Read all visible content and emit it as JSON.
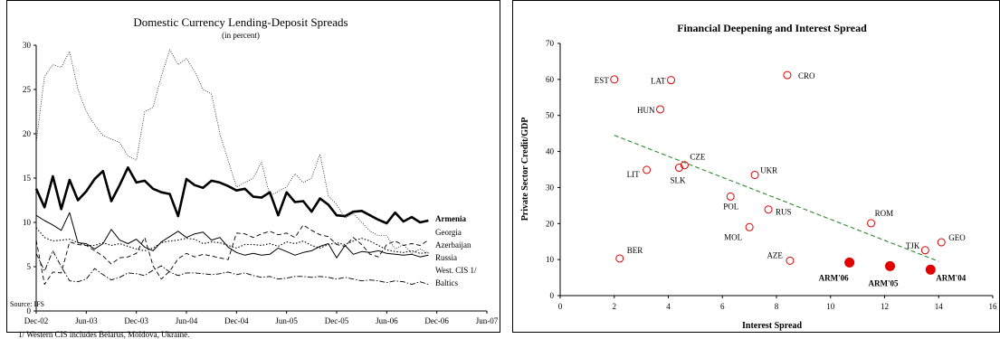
{
  "chart_data": [
    {
      "type": "line",
      "title": "Domestic Currency Lending-Deposit Spreads",
      "subtitle": "(in percent)",
      "source": "Source: IFS",
      "footnote": "1/ Western CIS includes Belarus, Moldova, Ukraine.",
      "ylim": [
        0,
        30
      ],
      "yticks": [
        0,
        5,
        10,
        15,
        20,
        25,
        30
      ],
      "xtick_labels": [
        "Dec-02",
        "Jun-03",
        "Dec-03",
        "Jun-04",
        "Dec-04",
        "Jun-05",
        "Dec-05",
        "Jun-06",
        "Dec-06",
        "Jun-07"
      ],
      "x_start": "Dec-02",
      "grid": false,
      "series": [
        {
          "name": "Armenia",
          "color": "#000000",
          "style": "bold-solid",
          "values": [
            13.8,
            11.7,
            15.2,
            11.5,
            14.8,
            12.5,
            13.5,
            14.9,
            15.8,
            12.4,
            14.2,
            16.2,
            14.5,
            14.7,
            13.8,
            13.4,
            13.2,
            10.7,
            14.9,
            14.2,
            13.9,
            14.7,
            14.5,
            14.1,
            13.6,
            13.8,
            12.9,
            12.8,
            13.4,
            10.8,
            13.4,
            12.3,
            12.4,
            11.2,
            12.7,
            12.0,
            10.8,
            10.7,
            11.2,
            11.3,
            10.8,
            10.3,
            9.9,
            11.1,
            10.1,
            10.6,
            10.0,
            10.2
          ]
        },
        {
          "name": "Georgia",
          "color": "#000000",
          "style": "dotted",
          "values": [
            9.4,
            8.3,
            7.9,
            8.0,
            8.1,
            7.7,
            7.4,
            7.4,
            7.7,
            7.4,
            7.6,
            7.3,
            7.0,
            6.8,
            7.1,
            7.7,
            7.9,
            8.0,
            8.2,
            8.1,
            7.6,
            7.8,
            7.7,
            7.4,
            7.1,
            7.5,
            7.5,
            7.4,
            7.6,
            7.3,
            7.8,
            7.6,
            7.9,
            7.4,
            7.1,
            7.5,
            7.7,
            7.5,
            7.9,
            8.2,
            7.9,
            7.4,
            6.9,
            6.7,
            6.6,
            6.8,
            6.5,
            6.6
          ]
        },
        {
          "name": "Azerbaijan",
          "color": "#000000",
          "style": "dashed",
          "values": [
            8.0,
            3.0,
            4.4,
            4.3,
            7.8,
            7.5,
            7.4,
            6.8,
            6.2,
            5.3,
            6.0,
            6.1,
            6.5,
            8.3,
            5.1,
            3.6,
            4.5,
            5.9,
            6.5,
            6.1,
            6.4,
            6.2,
            6.0,
            5.8,
            8.8,
            8.7,
            8.3,
            8.7,
            9.0,
            8.6,
            8.8,
            8.3,
            9.7,
            9.1,
            8.6,
            8.4,
            7.5,
            7.3,
            8.3,
            7.5,
            6.4,
            6.1,
            7.5,
            7.9,
            7.4,
            7.6,
            7.4,
            8.0
          ]
        },
        {
          "name": "Russia",
          "color": "#000000",
          "style": "solid",
          "values": [
            10.8,
            10.2,
            9.7,
            9.1,
            11.1,
            7.7,
            7.6,
            7.0,
            7.6,
            9.2,
            8.0,
            7.6,
            8.1,
            7.2,
            6.8,
            7.8,
            8.4,
            9.0,
            8.3,
            8.7,
            8.9,
            8.0,
            8.3,
            7.2,
            6.6,
            6.3,
            6.5,
            6.3,
            6.4,
            7.1,
            6.7,
            6.3,
            6.6,
            6.8,
            7.3,
            7.6,
            6.0,
            7.4,
            6.4,
            6.7,
            6.6,
            6.8,
            6.5,
            6.4,
            6.3,
            6.4,
            6.1,
            6.3
          ]
        },
        {
          "name": "West. CIS 1/",
          "color": "#000000",
          "style": "dash-dot",
          "values": [
            6.5,
            4.5,
            6.8,
            5.0,
            3.4,
            3.3,
            3.6,
            4.8,
            4.1,
            3.5,
            3.8,
            4.3,
            4.2,
            4.0,
            4.6,
            5.1,
            4.4,
            4.0,
            4.3,
            4.3,
            4.2,
            4.1,
            4.2,
            4.4,
            4.1,
            4.3,
            4.0,
            3.8,
            3.9,
            3.6,
            3.7,
            3.9,
            3.9,
            3.8,
            3.9,
            3.8,
            3.6,
            3.8,
            3.6,
            3.4,
            3.5,
            3.4,
            3.2,
            3.4,
            3.3,
            3.0,
            3.3,
            3.0
          ]
        },
        {
          "name": "Baltics",
          "color": "#000000",
          "style": "thin-dotted",
          "values": [
            19.0,
            26.5,
            27.8,
            27.5,
            29.3,
            25.0,
            22.5,
            21.0,
            19.8,
            19.4,
            19.0,
            17.5,
            17.0,
            22.5,
            23.0,
            26.5,
            29.5,
            27.8,
            28.5,
            27.0,
            25.0,
            24.5,
            20.0,
            17.0,
            14.0,
            14.5,
            15.0,
            16.8,
            13.0,
            13.5,
            14.0,
            15.5,
            14.5,
            15.0,
            17.7,
            13.0,
            12.0,
            10.5,
            11.0,
            10.0,
            9.0,
            8.5,
            8.5,
            7.0,
            7.5,
            6.5,
            7.0,
            6.5
          ]
        }
      ],
      "legend_placement": "right-end"
    },
    {
      "type": "scatter",
      "title": "Financial Deepening and Interest Spread",
      "xlabel": "Interest Spread",
      "ylabel": "Private Sector Credit/GDP",
      "xlim": [
        0,
        16
      ],
      "ylim": [
        0,
        70
      ],
      "xticks": [
        0,
        2,
        4,
        6,
        8,
        10,
        12,
        14,
        16
      ],
      "yticks": [
        0,
        10,
        20,
        30,
        40,
        50,
        60,
        70
      ],
      "trendline": {
        "x": [
          2,
          14
        ],
        "y": [
          44.5,
          9.5
        ],
        "style": "dashed",
        "color": "#2e8b2e"
      },
      "points": [
        {
          "label": "EST",
          "x": 2.0,
          "y": 60.0,
          "filled": false
        },
        {
          "label": "LAT",
          "x": 4.1,
          "y": 59.8,
          "filled": false
        },
        {
          "label": "CRO",
          "x": 8.4,
          "y": 61.2,
          "filled": false
        },
        {
          "label": "HUN",
          "x": 3.7,
          "y": 51.7,
          "filled": false
        },
        {
          "label": "CZE",
          "x": 4.6,
          "y": 36.2,
          "filled": false
        },
        {
          "label": "SLK",
          "x": 4.4,
          "y": 35.5,
          "filled": false
        },
        {
          "label": "LIT",
          "x": 3.2,
          "y": 34.9,
          "filled": false
        },
        {
          "label": "UKR",
          "x": 7.2,
          "y": 33.5,
          "filled": false
        },
        {
          "label": "POL",
          "x": 6.3,
          "y": 27.5,
          "filled": false
        },
        {
          "label": "RUS",
          "x": 7.7,
          "y": 23.9,
          "filled": false
        },
        {
          "label": "MOL",
          "x": 7.0,
          "y": 19.0,
          "filled": false
        },
        {
          "label": "ROM",
          "x": 11.5,
          "y": 20.1,
          "filled": false
        },
        {
          "label": "TJK",
          "x": 13.5,
          "y": 12.6,
          "filled": false
        },
        {
          "label": "GEO",
          "x": 14.1,
          "y": 14.8,
          "filled": false
        },
        {
          "label": "BER",
          "x": 2.2,
          "y": 10.3,
          "filled": false
        },
        {
          "label": "AZE",
          "x": 8.5,
          "y": 9.7,
          "filled": false
        },
        {
          "label": "ARM'06",
          "x": 10.7,
          "y": 9.2,
          "filled": true
        },
        {
          "label": "ARM'05",
          "x": 12.2,
          "y": 8.2,
          "filled": true
        },
        {
          "label": "ARM'04",
          "x": 13.7,
          "y": 7.2,
          "filled": true
        }
      ],
      "marker_color": "#e00000",
      "grid": false
    }
  ]
}
